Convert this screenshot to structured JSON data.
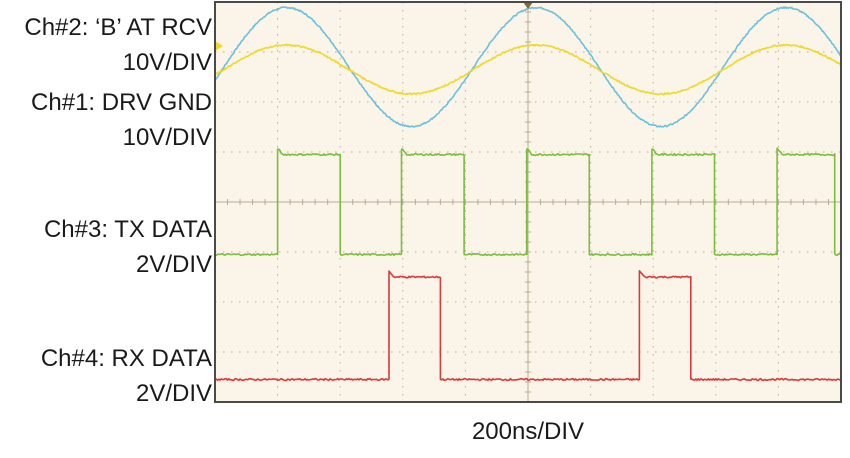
{
  "chart_data": {
    "type": "line",
    "xlabel": "200ns/DIV",
    "x_div_ns": 200,
    "x_range_div": [
      0,
      10
    ],
    "y_range_div": [
      -4,
      4
    ],
    "grid": true,
    "colors": {
      "background": "#faf5e8",
      "grid": "#b5ad96",
      "border": "#4a4a4a"
    },
    "channels": [
      {
        "id": "ch2",
        "name": "Ch#2: ‘B’ AT RCV",
        "scale": "10V/DIV",
        "color": "#6dc0dc",
        "waveform": "sine",
        "center_div": 2.7,
        "amplitude_div": 1.19,
        "period_div": 3.99,
        "peak_at_div": 1.14
      },
      {
        "id": "ch1",
        "name": "Ch#1: DRV GND",
        "scale": "10V/DIV",
        "color": "#f0d82a",
        "waveform": "sine",
        "center_div": 2.65,
        "amplitude_div": 0.49,
        "period_div": 3.99,
        "peak_at_div": 1.14
      },
      {
        "id": "ch3",
        "name": "Ch#3: TX DATA",
        "scale": "2V/DIV",
        "color": "#7cbd3c",
        "waveform": "digital",
        "low_div": -1.05,
        "high_div": 0.95,
        "initial": "low",
        "edges_div": [
          1.0,
          2.0,
          2.98,
          3.98,
          4.98,
          5.98,
          6.98,
          7.98,
          8.98,
          9.9
        ]
      },
      {
        "id": "ch4",
        "name": "Ch#4: RX DATA",
        "scale": "2V/DIV",
        "color": "#d93a3a",
        "waveform": "digital",
        "low_div": -3.55,
        "high_div": -1.5,
        "initial": "low",
        "edges_div": [
          2.78,
          3.6,
          6.78,
          7.6
        ]
      }
    ]
  }
}
